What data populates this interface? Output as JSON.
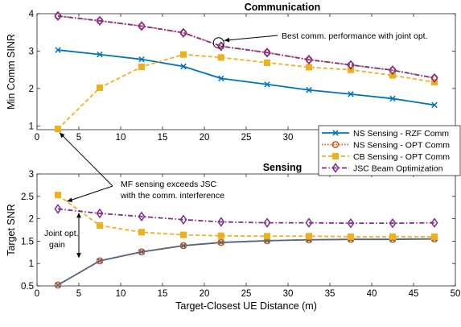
{
  "chart_data": [
    {
      "type": "line",
      "title": "Communication",
      "ylabel": "Min Comm SINR",
      "xlabel": "",
      "xlim": [
        0,
        50
      ],
      "ylim": [
        0.9,
        4.0
      ],
      "x_ticks": [
        0,
        5,
        10,
        15,
        20,
        25,
        30,
        35,
        40,
        45,
        50
      ],
      "y_ticks": [
        1,
        2,
        3,
        4
      ],
      "grid": false,
      "x": [
        2.5,
        7.5,
        12.5,
        17.5,
        22,
        27.5,
        32.5,
        37.5,
        42.5,
        47.5
      ],
      "series": [
        {
          "name": "NS Sensing - RZF Comm",
          "color": "#0072BD",
          "marker": "x",
          "dash": "solid",
          "values": [
            3.03,
            2.91,
            2.78,
            2.59,
            2.27,
            2.11,
            1.96,
            1.85,
            1.73,
            1.56
          ]
        },
        {
          "name": "NS Sensing - OPT Comm",
          "color": "#D95319",
          "marker": "o",
          "dash": "dot",
          "values": [
            3.94,
            3.81,
            3.67,
            3.49,
            3.13,
            2.96,
            2.77,
            2.63,
            2.49,
            2.28
          ]
        },
        {
          "name": "CB Sensing - OPT Comm",
          "color": "#EDB120",
          "marker": "s",
          "dash": "dash",
          "values": [
            0.92,
            2.02,
            2.58,
            2.91,
            2.83,
            2.69,
            2.57,
            2.5,
            2.35,
            2.17
          ]
        },
        {
          "name": "JSC Beam Optimization",
          "color": "#7E2F8E",
          "marker": "d",
          "dash": "dashdot",
          "values": [
            3.94,
            3.81,
            3.67,
            3.49,
            3.13,
            2.96,
            2.77,
            2.63,
            2.49,
            2.28
          ]
        }
      ],
      "annotations": [
        {
          "text": "Best comm. performance with joint opt."
        }
      ],
      "legend": {
        "placement": "bottom-right",
        "entries": [
          "NS Sensing - RZF Comm",
          "NS Sensing - OPT Comm",
          "CB Sensing - OPT Comm",
          "JSC Beam Optimization"
        ]
      }
    },
    {
      "type": "line",
      "title": "Sensing",
      "ylabel": "Target SNR",
      "xlabel": "Target-Closest UE Distance (m)",
      "xlim": [
        0,
        50
      ],
      "ylim": [
        0.5,
        3.0
      ],
      "x_ticks": [
        0,
        5,
        10,
        15,
        20,
        25,
        30,
        35,
        40,
        45,
        50
      ],
      "y_ticks": [
        0.5,
        1,
        1.5,
        2,
        2.5,
        3
      ],
      "grid": false,
      "x": [
        2.5,
        7.5,
        12.5,
        17.5,
        22,
        27.5,
        32.5,
        37.5,
        42.5,
        47.5
      ],
      "series": [
        {
          "name": "NS Sensing - RZF Comm",
          "color": "#0072BD",
          "marker": "x",
          "dash": "solid",
          "values": [
            0.52,
            1.06,
            1.26,
            1.4,
            1.47,
            1.51,
            1.53,
            1.54,
            1.54,
            1.55
          ]
        },
        {
          "name": "NS Sensing - OPT Comm",
          "color": "#D95319",
          "marker": "o",
          "dash": "dot",
          "values": [
            0.52,
            1.06,
            1.26,
            1.4,
            1.47,
            1.51,
            1.53,
            1.54,
            1.54,
            1.55
          ]
        },
        {
          "name": "CB Sensing - OPT Comm",
          "color": "#EDB120",
          "marker": "s",
          "dash": "dash",
          "values": [
            2.53,
            1.85,
            1.7,
            1.64,
            1.62,
            1.61,
            1.61,
            1.6,
            1.6,
            1.6
          ]
        },
        {
          "name": "JSC Beam Optimization",
          "color": "#7E2F8E",
          "marker": "d",
          "dash": "dashdot",
          "values": [
            2.22,
            2.12,
            2.05,
            1.98,
            1.93,
            1.91,
            1.91,
            1.9,
            1.9,
            1.91
          ]
        }
      ],
      "annotations": [
        {
          "text": "MF sensing exceeds JSC"
        },
        {
          "text": "with the comm. interference"
        },
        {
          "text": "Joint opt."
        },
        {
          "text": "gain"
        }
      ]
    }
  ]
}
